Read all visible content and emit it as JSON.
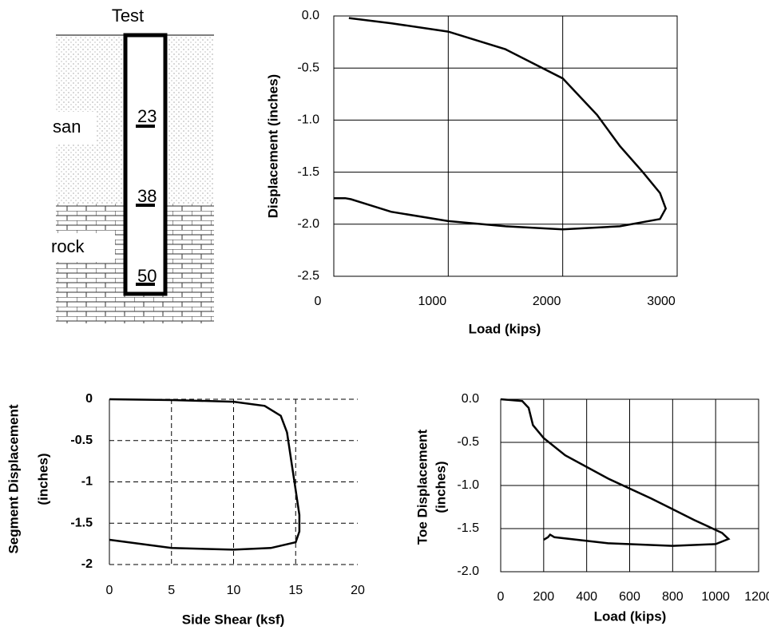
{
  "diagram": {
    "title": "Test",
    "layers": [
      "san",
      "rock"
    ],
    "gauges": [
      "23",
      "38",
      "50"
    ]
  },
  "chart_data": [
    {
      "type": "line",
      "x_label": "Load (kips)",
      "y_label": [
        "Displacement (inches)"
      ],
      "grid": "solid",
      "border": true,
      "xlim": [
        0,
        3000
      ],
      "ylim": [
        -2.5,
        0
      ],
      "xticks": [
        0,
        1000,
        2000,
        3000
      ],
      "yticks": [
        {
          "value": 0,
          "label": "0.0"
        },
        -0.5,
        {
          "value": -1,
          "label": "-1.0"
        },
        -1.5,
        {
          "value": -2,
          "label": "-2.0"
        },
        -2.5
      ],
      "series": [
        {
          "color": "#000000",
          "x": [
            132,
            500,
            1000,
            1500,
            2000,
            2300,
            2500,
            2700,
            2850,
            2900,
            2850,
            2500,
            2000,
            1500,
            1000,
            500,
            150,
            100,
            0
          ],
          "values": [
            -0.02,
            -0.07,
            -0.15,
            -0.32,
            -0.6,
            -0.95,
            -1.25,
            -1.5,
            -1.7,
            -1.85,
            -1.95,
            -2.02,
            -2.05,
            -2.02,
            -1.97,
            -1.88,
            -1.76,
            -1.75,
            -1.75
          ]
        }
      ]
    },
    {
      "type": "line",
      "x_label": "Side Shear (ksf)",
      "y_label": [
        "Segment Displacement",
        "(inches)"
      ],
      "grid": "dashed",
      "border": false,
      "xlim": [
        0,
        20
      ],
      "ylim": [
        -2,
        0
      ],
      "xticks": [
        0,
        5,
        10,
        15,
        20
      ],
      "yticks": [
        0,
        -0.5,
        -1,
        -1.5,
        -2
      ],
      "series": [
        {
          "color": "#000000",
          "x": [
            0,
            5,
            10,
            12.5,
            13.8,
            14.3,
            14.7,
            15,
            15.3,
            15.3,
            15,
            13,
            10,
            5,
            0
          ],
          "values": [
            0,
            -0.01,
            -0.03,
            -0.08,
            -0.2,
            -0.4,
            -0.8,
            -1.1,
            -1.4,
            -1.6,
            -1.73,
            -1.8,
            -1.82,
            -1.8,
            -1.7
          ]
        }
      ]
    },
    {
      "type": "line",
      "x_label": "Load (kips)",
      "y_label": [
        "Toe Displacement",
        "(inches)"
      ],
      "grid": "solid",
      "border": true,
      "xlim": [
        0,
        1200
      ],
      "ylim": [
        -2,
        0
      ],
      "xticks": [
        0,
        200,
        400,
        600,
        800,
        1000,
        1200
      ],
      "yticks": [
        {
          "value": 0,
          "label": "0.0"
        },
        -0.5,
        {
          "value": -1,
          "label": "-1.0"
        },
        -1.5,
        {
          "value": -2,
          "label": "-2.0"
        }
      ],
      "series": [
        {
          "color": "#000000",
          "x": [
            0,
            100,
            130,
            150,
            200,
            300,
            500,
            700,
            900,
            1030,
            1060,
            1000,
            800,
            500,
            250,
            230,
            220,
            200
          ],
          "values": [
            0,
            -0.02,
            -0.1,
            -0.3,
            -0.45,
            -0.65,
            -0.92,
            -1.15,
            -1.4,
            -1.55,
            -1.62,
            -1.68,
            -1.7,
            -1.67,
            -1.6,
            -1.57,
            -1.6,
            -1.63
          ]
        }
      ]
    }
  ]
}
